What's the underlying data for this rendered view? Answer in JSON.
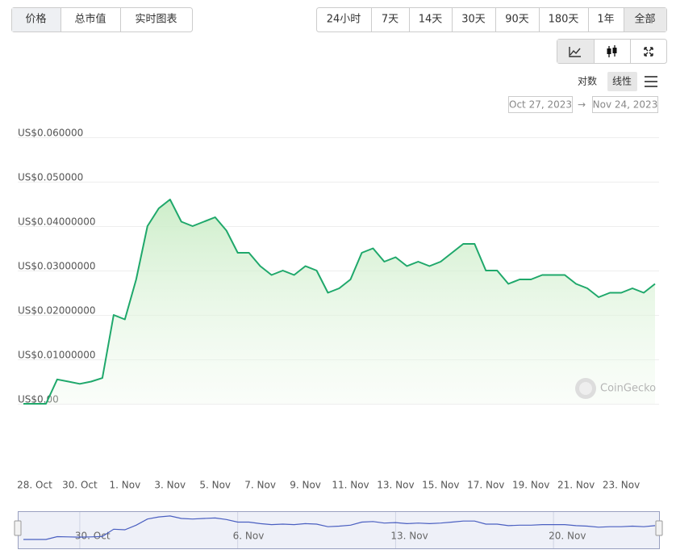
{
  "tabs": [
    "价格",
    "总市值",
    "实时图表"
  ],
  "ranges": [
    "24小时",
    "7天",
    "14天",
    "30天",
    "90天",
    "180天",
    "1年",
    "全部"
  ],
  "scale_options": [
    "对数",
    "线性"
  ],
  "date_from": "Oct 27, 2023",
  "date_separator": "→",
  "date_to": "Nov 24, 2023",
  "watermark": "CoinGecko",
  "chart_data": {
    "type": "line",
    "color": "#1fa86b",
    "categories": [
      null,
      "28. Oct",
      null,
      null,
      null,
      "30. Oct",
      null,
      null,
      null,
      "1. Nov",
      null,
      null,
      null,
      "3. Nov",
      null,
      null,
      null,
      "5. Nov",
      null,
      null,
      null,
      "7. Nov",
      null,
      null,
      null,
      "9. Nov",
      null,
      null,
      null,
      "11. Nov",
      null,
      null,
      null,
      "13. Nov",
      null,
      null,
      null,
      "15. Nov",
      null,
      null,
      null,
      "17. Nov",
      null,
      null,
      null,
      "19. Nov",
      null,
      null,
      null,
      "21. Nov",
      null,
      null,
      null,
      "23. Nov",
      null,
      null,
      null
    ],
    "values": [
      0,
      0,
      0,
      0.0055,
      0.005,
      0.0045,
      0.005,
      0.0058,
      0.02,
      0.019,
      0.028,
      0.04,
      0.044,
      0.046,
      0.041,
      0.04,
      0.041,
      0.042,
      0.039,
      0.034,
      0.034,
      0.031,
      0.029,
      0.03,
      0.029,
      0.031,
      0.03,
      0.025,
      0.026,
      0.028,
      0.034,
      0.035,
      0.032,
      0.033,
      0.031,
      0.032,
      0.031,
      0.032,
      0.034,
      0.036,
      0.036,
      0.03,
      0.03,
      0.027,
      0.028,
      0.028,
      0.029,
      0.029,
      0.029,
      0.027,
      0.026,
      0.024,
      0.025,
      0.025,
      0.026,
      0.025,
      0.027
    ],
    "ylim": [
      0,
      0.06
    ],
    "yticks": [
      {
        "value": 0,
        "label": "US$0.00"
      },
      {
        "value": 0.01,
        "label": "US$0.01000000"
      },
      {
        "value": 0.02,
        "label": "US$0.02000000"
      },
      {
        "value": 0.03,
        "label": "US$0.03000000"
      },
      {
        "value": 0.04,
        "label": "US$0.04000000"
      },
      {
        "value": 0.05,
        "label": "US$0.050000"
      },
      {
        "value": 0.06,
        "label": "US$0.060000"
      }
    ],
    "grid": true
  },
  "navigator": {
    "labels": [
      "30. Oct",
      "6. Nov",
      "13. Nov",
      "20. Nov"
    ]
  }
}
